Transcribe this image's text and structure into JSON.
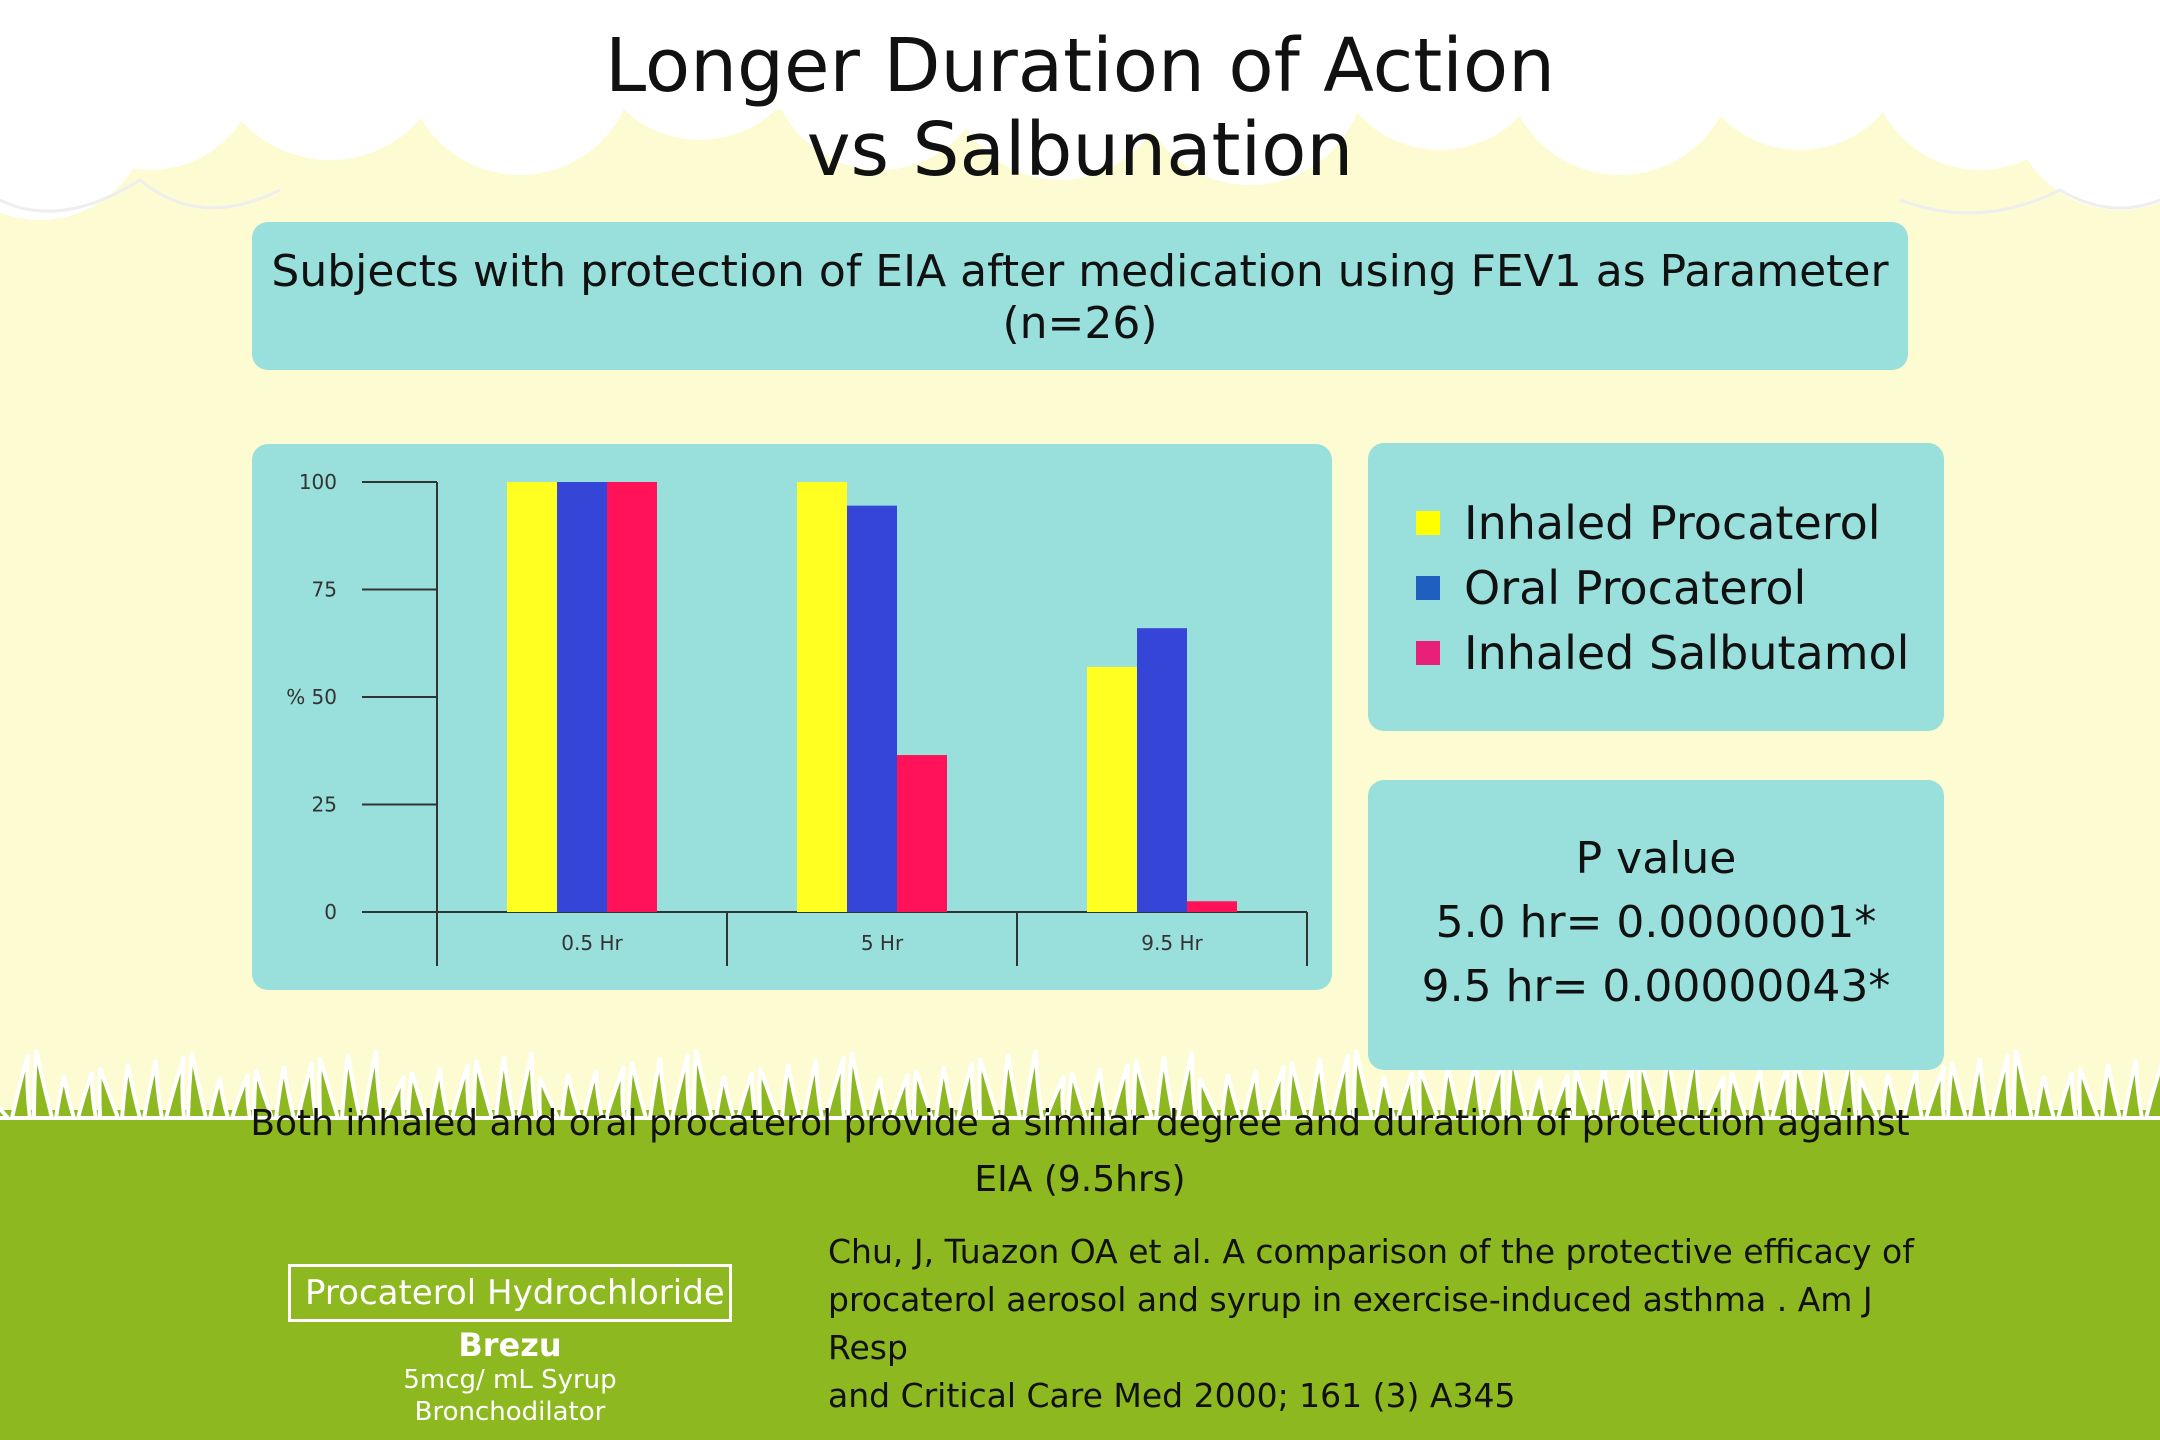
{
  "title": {
    "line1": "Longer Duration of Action",
    "line2": "vs Salbunation"
  },
  "subtitle": {
    "line1": "Subjects with protection of EIA after medication using FEV1 as Parameter",
    "line2": "(n=26)"
  },
  "legend": [
    {
      "label": "Inhaled Procaterol",
      "color": "#ffff00"
    },
    {
      "label": "Oral Procaterol",
      "color": "#1f5fbf"
    },
    {
      "label": "Inhaled Salbutamol",
      "color": "#e8207a"
    }
  ],
  "pvalue": {
    "heading": "P value",
    "line1": "5.0 hr= 0.0000001*",
    "line2": "9.5 hr= 0.00000043*"
  },
  "conclusion": {
    "line1": "Both inhaled and oral procaterol provide a similar degree and duration of protection against",
    "line2": "EIA (9.5hrs)"
  },
  "citation": {
    "line1": "Chu, J, Tuazon OA et al. A comparison of the protective efficacy of",
    "line2": "procaterol aerosol and syrup in exercise-induced asthma . Am J Resp",
    "line3": "and Critical Care Med 2000; 161 (3) A345"
  },
  "brand": {
    "generic": "Procaterol Hydrochloride",
    "name": "Brezu",
    "strength": "5mcg/ mL Syrup",
    "category": "Bronchodilator"
  },
  "chart_data": {
    "type": "bar",
    "categories": [
      "0.5 Hr",
      "5 Hr",
      "9.5 Hr"
    ],
    "series": [
      {
        "name": "Inhaled Procaterol",
        "color": "#ffff22",
        "values": [
          100,
          100,
          57
        ]
      },
      {
        "name": "Oral Procaterol",
        "color": "#3545d8",
        "values": [
          100,
          94.5,
          66
        ]
      },
      {
        "name": "Inhaled Salbutamol",
        "color": "#ff1258",
        "values": [
          100,
          36.5,
          2.5
        ]
      }
    ],
    "yticks": [
      "100",
      "75",
      "% 50",
      "25",
      "0"
    ],
    "ytick_values": [
      100,
      75,
      50,
      25,
      0
    ],
    "ylim": [
      0,
      100
    ],
    "grid": false,
    "legend_position": "right"
  }
}
